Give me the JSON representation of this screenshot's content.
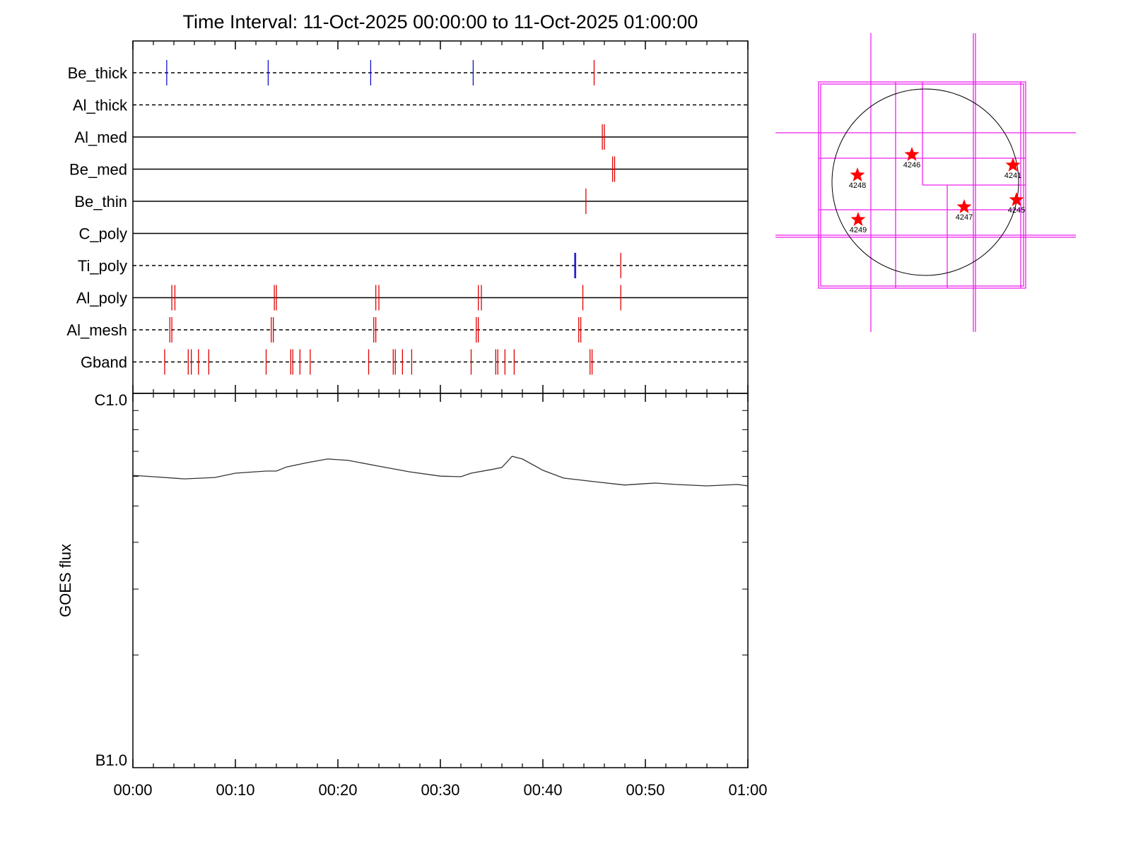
{
  "chart_data": [
    {
      "type": "timeline",
      "title": "Time Interval: 11-Oct-2025 00:00:00 to 11-Oct-2025 01:00:00",
      "xlim": [
        0,
        60
      ],
      "series": [
        {
          "name": "Be_thick",
          "line": "dashed",
          "values": [
            3.3,
            13.2,
            23.2,
            33.2,
            45.0
          ],
          "colors": [
            "#1010c8",
            "#1010c8",
            "#1010c8",
            "#1010c8",
            "#e00000"
          ]
        },
        {
          "name": "Al_thick",
          "line": "dashed",
          "values": [],
          "colors": []
        },
        {
          "name": "Al_med",
          "line": "solid",
          "values": [
            45.8,
            46.0
          ],
          "colors": [
            "#e00000",
            "#e00000"
          ]
        },
        {
          "name": "Be_med",
          "line": "solid",
          "values": [
            46.8,
            47.0
          ],
          "colors": [
            "#e00000",
            "#e00000"
          ]
        },
        {
          "name": "Be_thin",
          "line": "solid",
          "values": [
            44.2
          ],
          "colors": [
            "#e00000"
          ]
        },
        {
          "name": "C_poly",
          "line": "solid",
          "values": [],
          "colors": []
        },
        {
          "name": "Ti_poly",
          "line": "dashed",
          "values": [
            43.1,
            43.2,
            47.6
          ],
          "colors": [
            "#1010c8",
            "#1010c8",
            "#e00000"
          ]
        },
        {
          "name": "Al_poly",
          "line": "solid",
          "values": [
            3.8,
            4.1,
            13.8,
            14.0,
            23.7,
            24.0,
            33.7,
            34.0,
            43.9,
            47.6
          ],
          "colors": [
            "#e00000",
            "#e00000",
            "#e00000",
            "#e00000",
            "#e00000",
            "#e00000",
            "#e00000",
            "#e00000",
            "#e00000",
            "#e00000"
          ]
        },
        {
          "name": "Al_mesh",
          "line": "dashed",
          "values": [
            3.6,
            3.8,
            13.5,
            13.7,
            23.5,
            23.7,
            33.5,
            33.7,
            43.5,
            43.7
          ],
          "colors": [
            "#e00000",
            "#e00000",
            "#e00000",
            "#e00000",
            "#e00000",
            "#e00000",
            "#e00000",
            "#e00000",
            "#e00000",
            "#e00000"
          ]
        },
        {
          "name": "Gband",
          "line": "dashed",
          "values": [
            3.1,
            5.4,
            5.7,
            6.4,
            7.4,
            13.0,
            15.4,
            15.6,
            16.3,
            17.3,
            23.0,
            25.4,
            25.6,
            26.3,
            27.2,
            33.0,
            35.4,
            35.6,
            36.3,
            37.2,
            44.6,
            44.8
          ],
          "colors": [
            "#e00000",
            "#e00000",
            "#e00000",
            "#e00000",
            "#e00000",
            "#e00000",
            "#e00000",
            "#e00000",
            "#e00000",
            "#e00000",
            "#e00000",
            "#e00000",
            "#e00000",
            "#e00000",
            "#e00000",
            "#e00000",
            "#e00000",
            "#e00000",
            "#e00000",
            "#e00000",
            "#e00000",
            "#e00000"
          ]
        }
      ]
    },
    {
      "type": "line",
      "ylabel": "GOES flux",
      "log_y": true,
      "xlim": [
        0,
        60
      ],
      "xminor": 5,
      "xticks": [
        {
          "value": 0,
          "label": "00:00"
        },
        {
          "value": 10,
          "label": "00:10"
        },
        {
          "value": 20,
          "label": "00:20"
        },
        {
          "value": 30,
          "label": "00:30"
        },
        {
          "value": 40,
          "label": "00:40"
        },
        {
          "value": 50,
          "label": "00:50"
        },
        {
          "value": 60,
          "label": "01:00"
        }
      ],
      "ylim": [
        1e-07,
        1e-06
      ],
      "yticks": [
        {
          "value": 1e-07,
          "label": "B1.0"
        },
        {
          "value": 1e-06,
          "label": "C1.0"
        }
      ],
      "series": [
        {
          "name": "GOES",
          "color": "#333333",
          "x": [
            0,
            2,
            5,
            8,
            10,
            13,
            14,
            15,
            17,
            19,
            21,
            24,
            27,
            30,
            32,
            33,
            35,
            36,
            37,
            38,
            40,
            42,
            45,
            48,
            50,
            51,
            53,
            56,
            59,
            60
          ],
          "values": [
            6.04e-07,
            5.99e-07,
            5.91e-07,
            5.96e-07,
            6.12e-07,
            6.2e-07,
            6.2e-07,
            6.36e-07,
            6.53e-07,
            6.68e-07,
            6.62e-07,
            6.39e-07,
            6.17e-07,
            6.01e-07,
            5.99e-07,
            6.12e-07,
            6.26e-07,
            6.34e-07,
            6.79e-07,
            6.68e-07,
            6.23e-07,
            5.94e-07,
            5.81e-07,
            5.69e-07,
            5.74e-07,
            5.76e-07,
            5.71e-07,
            5.66e-07,
            5.71e-07,
            5.66e-07
          ]
        }
      ]
    },
    {
      "type": "map",
      "regions": [
        "4246",
        "4248",
        "4241",
        "4245",
        "4247",
        "4249"
      ]
    }
  ]
}
